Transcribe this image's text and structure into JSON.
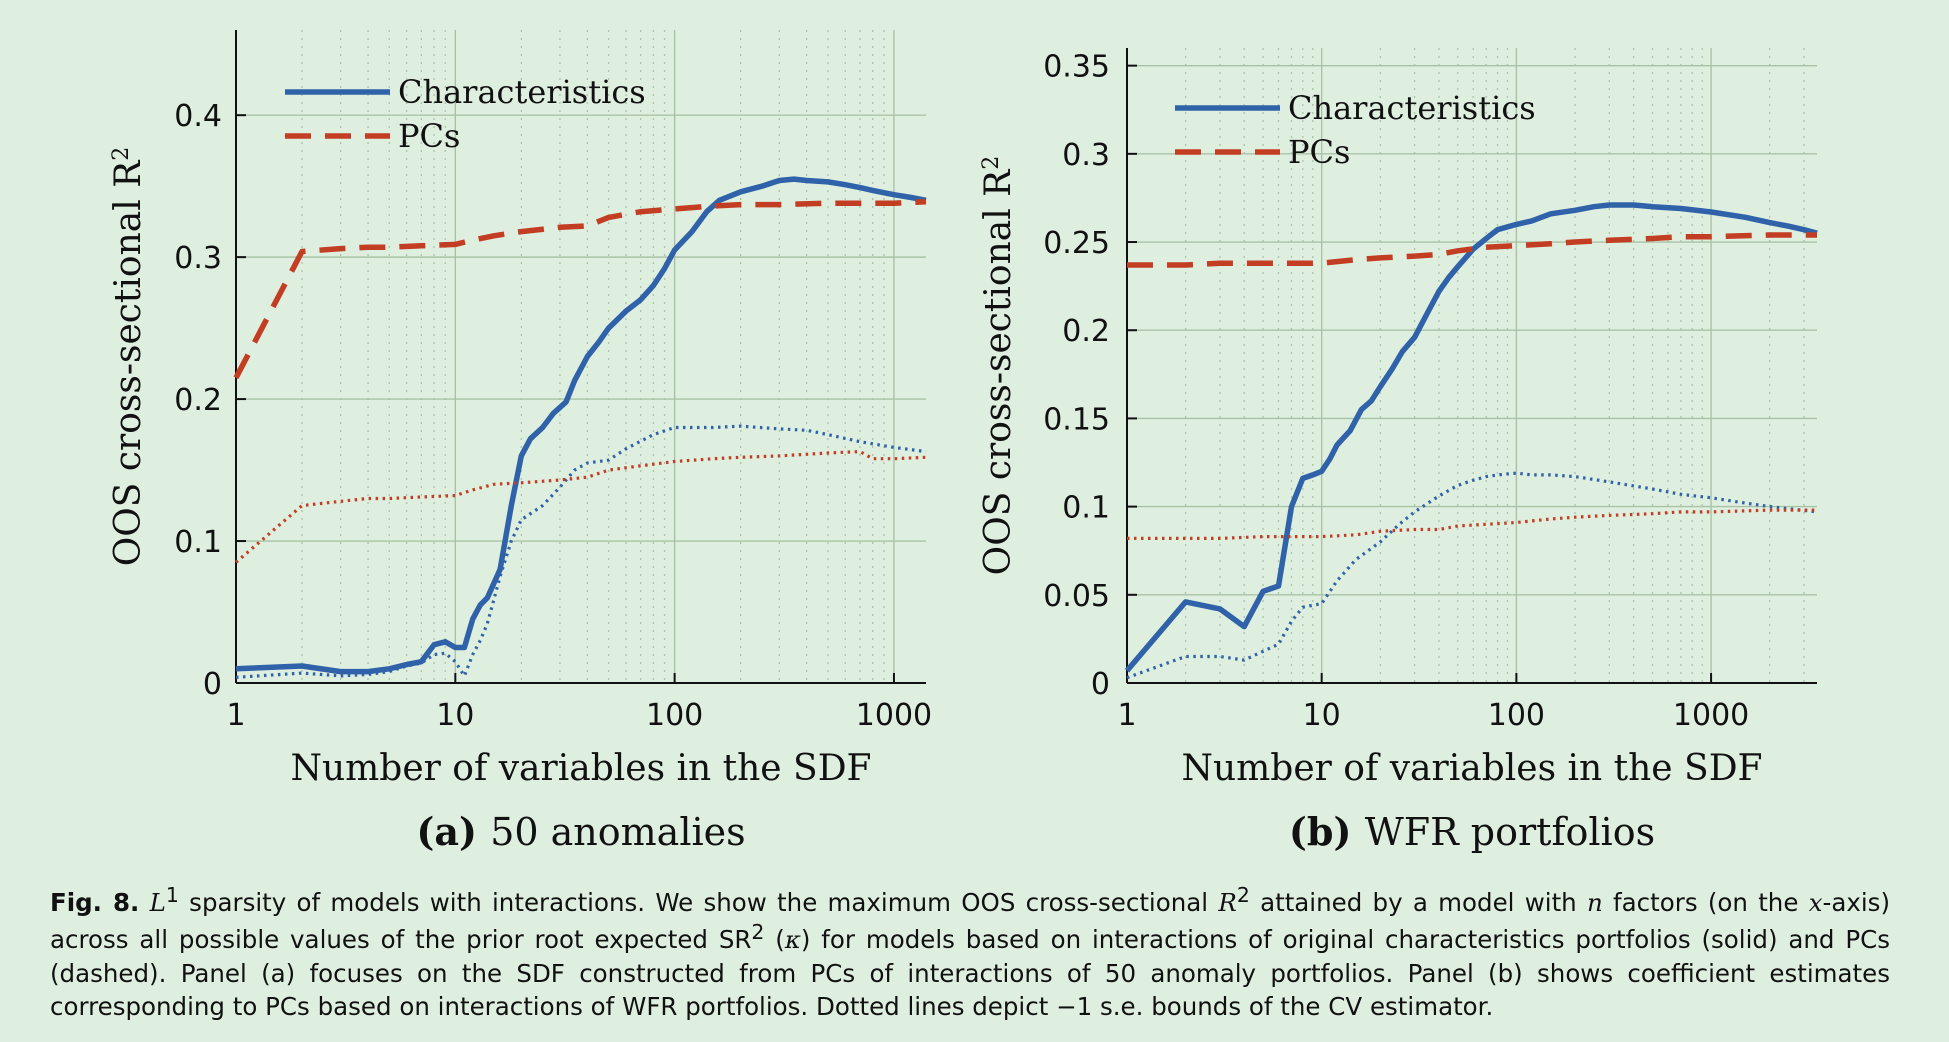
{
  "chart_data": [
    {
      "type": "line",
      "panel_label": "(a)",
      "panel_title": "50 anomalies",
      "xlabel": "Number of variables in the SDF",
      "ylabel": "OOS cross-sectional R",
      "ylabel_sup": "2",
      "xscale": "log",
      "xlim": [
        1,
        1400
      ],
      "ylim": [
        0,
        0.46
      ],
      "xticks": [
        1,
        10,
        100,
        1000
      ],
      "xtick_labels": [
        "1",
        "10",
        "100",
        "1000"
      ],
      "yticks": [
        0,
        0.1,
        0.2,
        0.3,
        0.4
      ],
      "ytick_labels": [
        "0",
        "0.1",
        "0.2",
        "0.3",
        "0.4"
      ],
      "grid": true,
      "legend_position": "top-left",
      "legend": [
        "Characteristics",
        "PCs"
      ],
      "series": [
        {
          "name": "Characteristics",
          "style": "solid",
          "color": "#2f62a8",
          "x": [
            1,
            2,
            3,
            4,
            5,
            6,
            7,
            8,
            9,
            10,
            11,
            12,
            13,
            14,
            16,
            18,
            20,
            22,
            25,
            28,
            32,
            35,
            40,
            45,
            50,
            60,
            70,
            80,
            90,
            100,
            120,
            140,
            160,
            200,
            250,
            300,
            350,
            400,
            500,
            600,
            700,
            800,
            1000,
            1200,
            1400
          ],
          "y": [
            0.01,
            0.012,
            0.008,
            0.008,
            0.01,
            0.013,
            0.015,
            0.027,
            0.029,
            0.025,
            0.025,
            0.045,
            0.055,
            0.06,
            0.08,
            0.125,
            0.16,
            0.172,
            0.18,
            0.19,
            0.198,
            0.213,
            0.23,
            0.24,
            0.25,
            0.262,
            0.27,
            0.28,
            0.292,
            0.305,
            0.318,
            0.332,
            0.34,
            0.346,
            0.35,
            0.354,
            0.355,
            0.354,
            0.353,
            0.351,
            0.349,
            0.347,
            0.344,
            0.342,
            0.34
          ]
        },
        {
          "name": "PCs",
          "style": "dashed",
          "color": "#c33d22",
          "x": [
            1,
            2,
            3,
            4,
            5,
            7,
            10,
            12,
            15,
            20,
            30,
            40,
            50,
            70,
            100,
            150,
            200,
            300,
            500,
            700,
            1000,
            1400
          ],
          "y": [
            0.215,
            0.304,
            0.306,
            0.307,
            0.307,
            0.308,
            0.309,
            0.312,
            0.315,
            0.318,
            0.321,
            0.322,
            0.328,
            0.332,
            0.334,
            0.336,
            0.337,
            0.337,
            0.338,
            0.338,
            0.338,
            0.339
          ]
        },
        {
          "style": "dotted",
          "color": "#2f62a8",
          "x": [
            1,
            2,
            3,
            4,
            5,
            6,
            7,
            8,
            9,
            10,
            11,
            12,
            13,
            14,
            16,
            18,
            20,
            25,
            30,
            35,
            40,
            50,
            60,
            80,
            100,
            150,
            200,
            300,
            400,
            500,
            700,
            1000,
            1400
          ],
          "y": [
            0.004,
            0.007,
            0.005,
            0.006,
            0.008,
            0.012,
            0.014,
            0.02,
            0.021,
            0.015,
            0.005,
            0.02,
            0.03,
            0.042,
            0.075,
            0.1,
            0.115,
            0.125,
            0.138,
            0.15,
            0.155,
            0.157,
            0.165,
            0.175,
            0.18,
            0.18,
            0.181,
            0.179,
            0.178,
            0.175,
            0.17,
            0.166,
            0.163
          ]
        },
        {
          "style": "dotted",
          "color": "#c33d22",
          "x": [
            1,
            2,
            3,
            4,
            5,
            7,
            10,
            12,
            15,
            20,
            30,
            40,
            50,
            70,
            100,
            150,
            200,
            300,
            500,
            700,
            800,
            1000,
            1400
          ],
          "y": [
            0.085,
            0.125,
            0.128,
            0.13,
            0.13,
            0.131,
            0.132,
            0.136,
            0.14,
            0.141,
            0.143,
            0.145,
            0.15,
            0.153,
            0.156,
            0.158,
            0.159,
            0.16,
            0.162,
            0.163,
            0.158,
            0.158,
            0.159
          ]
        }
      ]
    },
    {
      "type": "line",
      "panel_label": "(b)",
      "panel_title": "WFR portfolios",
      "xlabel": "Number of variables in the SDF",
      "ylabel": "OOS cross-sectional R",
      "ylabel_sup": "2",
      "xscale": "log",
      "xlim": [
        1,
        3500
      ],
      "ylim": [
        0,
        0.36
      ],
      "xticks": [
        1,
        10,
        100,
        1000
      ],
      "xtick_labels": [
        "1",
        "10",
        "100",
        "1000"
      ],
      "yticks": [
        0,
        0.05,
        0.1,
        0.15,
        0.2,
        0.25,
        0.3,
        0.35
      ],
      "ytick_labels": [
        "0",
        "0.05",
        "0.1",
        "0.15",
        "0.2",
        "0.25",
        "0.3",
        "0.35"
      ],
      "grid": true,
      "legend_position": "top-left",
      "legend": [
        "Characteristics",
        "PCs"
      ],
      "series": [
        {
          "name": "Characteristics",
          "style": "solid",
          "color": "#2f62a8",
          "x": [
            1,
            2,
            3,
            4,
            5,
            6,
            7,
            8,
            9,
            10,
            11,
            12,
            14,
            16,
            18,
            20,
            23,
            26,
            30,
            35,
            40,
            45,
            50,
            60,
            70,
            80,
            100,
            120,
            150,
            200,
            250,
            300,
            400,
            500,
            700,
            1000,
            1500,
            2000,
            2500,
            3000,
            3500
          ],
          "y": [
            0.007,
            0.046,
            0.042,
            0.032,
            0.052,
            0.055,
            0.1,
            0.116,
            0.118,
            0.12,
            0.127,
            0.135,
            0.143,
            0.155,
            0.16,
            0.168,
            0.178,
            0.188,
            0.196,
            0.21,
            0.222,
            0.23,
            0.236,
            0.246,
            0.252,
            0.257,
            0.26,
            0.262,
            0.266,
            0.268,
            0.27,
            0.271,
            0.271,
            0.27,
            0.269,
            0.267,
            0.264,
            0.261,
            0.259,
            0.257,
            0.255
          ]
        },
        {
          "name": "PCs",
          "style": "dashed",
          "color": "#c33d22",
          "x": [
            1,
            2,
            3,
            5,
            7,
            10,
            15,
            20,
            30,
            40,
            50,
            70,
            100,
            150,
            200,
            300,
            500,
            700,
            1000,
            2000,
            3500
          ],
          "y": [
            0.237,
            0.237,
            0.238,
            0.238,
            0.238,
            0.238,
            0.24,
            0.241,
            0.242,
            0.243,
            0.245,
            0.247,
            0.248,
            0.249,
            0.25,
            0.251,
            0.252,
            0.253,
            0.253,
            0.254,
            0.254
          ]
        },
        {
          "style": "dotted",
          "color": "#2f62a8",
          "x": [
            1,
            2,
            3,
            4,
            5,
            6,
            7,
            8,
            10,
            12,
            15,
            20,
            25,
            30,
            40,
            50,
            60,
            70,
            80,
            100,
            120,
            150,
            200,
            300,
            500,
            700,
            1000,
            1500,
            2000,
            3500
          ],
          "y": [
            0.003,
            0.015,
            0.015,
            0.013,
            0.018,
            0.022,
            0.035,
            0.043,
            0.045,
            0.058,
            0.07,
            0.08,
            0.09,
            0.097,
            0.106,
            0.112,
            0.115,
            0.117,
            0.118,
            0.119,
            0.118,
            0.118,
            0.117,
            0.114,
            0.11,
            0.107,
            0.105,
            0.102,
            0.1,
            0.097
          ]
        },
        {
          "style": "dotted",
          "color": "#c33d22",
          "x": [
            1,
            2,
            3,
            5,
            7,
            10,
            15,
            20,
            30,
            40,
            50,
            70,
            100,
            150,
            200,
            300,
            500,
            700,
            1000,
            2000,
            3500
          ],
          "y": [
            0.082,
            0.082,
            0.082,
            0.083,
            0.083,
            0.083,
            0.084,
            0.086,
            0.087,
            0.087,
            0.089,
            0.09,
            0.091,
            0.093,
            0.094,
            0.095,
            0.096,
            0.097,
            0.097,
            0.098,
            0.098
          ]
        }
      ]
    }
  ],
  "caption": {
    "figure_label": "Fig. 8.",
    "p1": "L",
    "p1_sup": "1",
    "p2": " sparsity of models with interactions. We show the maximum OOS cross-sectional ",
    "p3": "R",
    "p3_sup": "2",
    "p4": " attained by a model with ",
    "p5": "n",
    "p6": " factors (on the ",
    "p7": "x",
    "p8": "-axis) across all possible values of the prior root expected SR",
    "p8_sup": "2",
    "p9": " (",
    "p10": "κ",
    "p11": ") for models based on interactions of original characteristics portfolios (solid) and PCs (dashed). Panel (a) focuses on the SDF constructed from PCs of interactions of 50 anomaly portfolios. Panel (b) shows coefficient estimates corresponding to PCs based on interactions of WFR portfolios. Dotted lines depict −1 s.e. bounds of the CV estimator."
  },
  "colors": {
    "background": "#deefe0",
    "characteristics": "#2f62a8",
    "pcs": "#c33d22",
    "grid": "#a9c2a6"
  }
}
